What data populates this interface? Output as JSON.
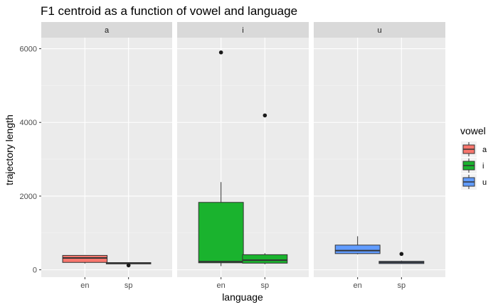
{
  "chart_data": {
    "type": "boxplot",
    "title": "F1 centroid as a function of vowel and language",
    "xlabel": "language",
    "ylabel": "trajectory length",
    "ylim": [
      -200,
      6300
    ],
    "yticks": [
      0,
      2000,
      4000,
      6000
    ],
    "categories": [
      "en",
      "sp"
    ],
    "grid": true,
    "legend": {
      "title": "vowel",
      "position": "right",
      "entries": [
        {
          "label": "a",
          "color": "#F8766D"
        },
        {
          "label": "i",
          "color": "#1AB32E"
        },
        {
          "label": "u",
          "color": "#619CFF"
        }
      ]
    },
    "facets": [
      {
        "label": "a",
        "color": "#F8766D",
        "boxes": [
          {
            "category": "en",
            "min": 170,
            "q1": 200,
            "median": 320,
            "q3": 390,
            "max": 400,
            "outliers": []
          },
          {
            "category": "sp",
            "min": 160,
            "q1": 160,
            "median": 180,
            "q3": 195,
            "max": 200,
            "outliers": [
              120
            ]
          }
        ]
      },
      {
        "label": "i",
        "color": "#1AB32E",
        "boxes": [
          {
            "category": "en",
            "min": 100,
            "q1": 190,
            "median": 220,
            "q3": 1830,
            "max": 2380,
            "outliers": [
              5900
            ]
          },
          {
            "category": "sp",
            "min": 150,
            "q1": 180,
            "median": 260,
            "q3": 410,
            "max": 450,
            "outliers": [
              4190
            ]
          }
        ]
      },
      {
        "label": "u",
        "color": "#619CFF",
        "boxes": [
          {
            "category": "en",
            "min": 420,
            "q1": 440,
            "median": 520,
            "q3": 670,
            "max": 910,
            "outliers": []
          },
          {
            "category": "sp",
            "min": 160,
            "q1": 170,
            "median": 200,
            "q3": 230,
            "max": 250,
            "outliers": [
              430
            ]
          }
        ]
      }
    ]
  }
}
